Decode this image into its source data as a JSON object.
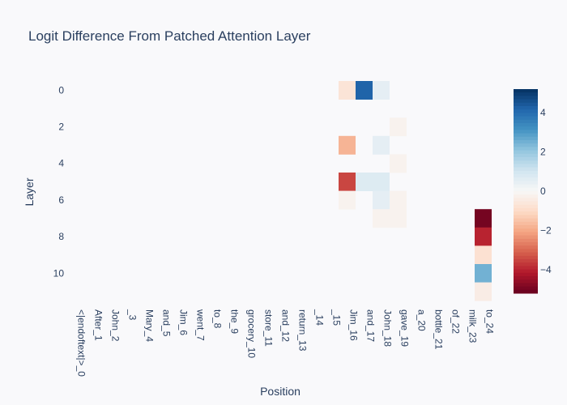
{
  "chart_data": {
    "type": "heatmap",
    "title": "Logit Difference From Patched Attention Layer",
    "xlabel": "Position",
    "ylabel": "Layer",
    "x_categories": [
      "<|endoftext|>_0",
      "After_1",
      "John_2",
      "_3",
      "Mary_4",
      "and_5",
      "Jim_6",
      "went_7",
      "to_8",
      "the_9",
      "grocery_10",
      "store_11",
      "and_12",
      "return_13",
      "_14",
      "_15",
      "Jim_16",
      "and_17",
      "John_18",
      "gave_19",
      "a_20",
      "bottle_21",
      "of_22",
      "milk_23",
      "to_24"
    ],
    "y_categories": [
      0,
      1,
      2,
      3,
      4,
      5,
      6,
      7,
      8,
      9,
      10,
      11
    ],
    "y_tick_labels": [
      "0",
      "2",
      "4",
      "6",
      "8",
      "10"
    ],
    "colorscale": "RdBu",
    "zlim": [
      -5.2,
      5.2
    ],
    "colorbar_ticks": [
      4,
      2,
      0,
      -2,
      -4
    ],
    "cells": [
      {
        "layer": 0,
        "position": "Jim_16",
        "value": -0.7
      },
      {
        "layer": 0,
        "position": "and_17",
        "value": 4.2
      },
      {
        "layer": 0,
        "position": "John_18",
        "value": 0.5
      },
      {
        "layer": 2,
        "position": "gave_19",
        "value": -0.2
      },
      {
        "layer": 3,
        "position": "Jim_16",
        "value": -1.8
      },
      {
        "layer": 3,
        "position": "John_18",
        "value": 0.5
      },
      {
        "layer": 4,
        "position": "gave_19",
        "value": -0.2
      },
      {
        "layer": 5,
        "position": "Jim_16",
        "value": -3.5
      },
      {
        "layer": 5,
        "position": "and_17",
        "value": 0.7
      },
      {
        "layer": 5,
        "position": "John_18",
        "value": 0.7
      },
      {
        "layer": 6,
        "position": "Jim_16",
        "value": -0.2
      },
      {
        "layer": 6,
        "position": "John_18",
        "value": 0.5
      },
      {
        "layer": 6,
        "position": "gave_19",
        "value": -0.2
      },
      {
        "layer": 7,
        "position": "John_18",
        "value": -0.2
      },
      {
        "layer": 7,
        "position": "gave_19",
        "value": -0.2
      },
      {
        "layer": 7,
        "position": "to_24",
        "value": -5.0
      },
      {
        "layer": 8,
        "position": "to_24",
        "value": -4.0
      },
      {
        "layer": 9,
        "position": "to_24",
        "value": -0.8
      },
      {
        "layer": 10,
        "position": "to_24",
        "value": 2.5
      },
      {
        "layer": 11,
        "position": "to_24",
        "value": -0.4
      }
    ]
  }
}
